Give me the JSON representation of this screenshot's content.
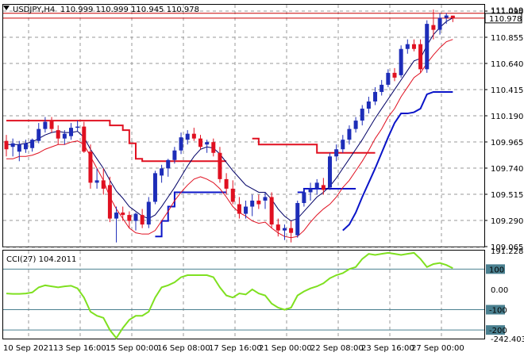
{
  "header": {
    "symbol": "USDJPY,H4",
    "ohlc": "110.999 110.999 110.945 110.978",
    "triangle_icon": "triangle-down-icon"
  },
  "price_panel": {
    "current_price_label": "110.978",
    "high_label": "111.019",
    "y_ticks": [
      "111.090",
      "110.855",
      "110.640",
      "110.415",
      "110.190",
      "109.965",
      "109.740",
      "109.515",
      "109.290",
      "109.065"
    ]
  },
  "cci_panel": {
    "label": "CCI(27) 104.2011",
    "y_ticks": [
      "191.2285",
      "100",
      "0.00",
      "-100",
      "-200",
      "-242.4031"
    ],
    "levels": [
      100,
      -100,
      -200
    ]
  },
  "x_axis": {
    "ticks": [
      "10 Sep 2021",
      "13 Sep 16:00",
      "15 Sep 00:00",
      "16 Sep 08:00",
      "17 Sep 16:00",
      "21 Sep 00:00",
      "22 Sep 08:00",
      "23 Sep 16:00",
      "27 Sep 00:00"
    ]
  },
  "colors": {
    "bull": "#1d2db8",
    "bear": "#e01020",
    "red_band": "#e01020",
    "blue_band": "#0a14c8",
    "navy_line": "#000066",
    "cci_line": "#7fe020",
    "level_line": "#4a8090",
    "price_line": "#cc0000"
  },
  "chart_data": {
    "type": "candlestick",
    "title": "USDJPY,H4",
    "ylim": [
      109.065,
      111.09
    ],
    "candles": [
      {
        "o": 109.95,
        "h": 110.0,
        "l": 109.82,
        "c": 109.88
      },
      {
        "o": 109.9,
        "h": 109.97,
        "l": 109.82,
        "c": 109.93
      },
      {
        "o": 109.86,
        "h": 109.95,
        "l": 109.78,
        "c": 109.92
      },
      {
        "o": 109.88,
        "h": 109.96,
        "l": 109.85,
        "c": 109.93
      },
      {
        "o": 109.89,
        "h": 109.97,
        "l": 109.86,
        "c": 109.96
      },
      {
        "o": 109.95,
        "h": 110.1,
        "l": 109.93,
        "c": 110.05
      },
      {
        "o": 110.05,
        "h": 110.15,
        "l": 110.02,
        "c": 110.11
      },
      {
        "o": 110.12,
        "h": 110.15,
        "l": 110.02,
        "c": 110.05
      },
      {
        "o": 110.04,
        "h": 110.08,
        "l": 109.92,
        "c": 109.97
      },
      {
        "o": 109.97,
        "h": 110.04,
        "l": 109.92,
        "c": 110.01
      },
      {
        "o": 109.99,
        "h": 110.1,
        "l": 109.96,
        "c": 110.06
      },
      {
        "o": 110.06,
        "h": 110.12,
        "l": 110.03,
        "c": 110.07
      },
      {
        "o": 110.07,
        "h": 110.11,
        "l": 109.85,
        "c": 109.86
      },
      {
        "o": 109.86,
        "h": 109.92,
        "l": 109.55,
        "c": 109.6
      },
      {
        "o": 109.6,
        "h": 109.72,
        "l": 109.55,
        "c": 109.62
      },
      {
        "o": 109.62,
        "h": 109.72,
        "l": 109.5,
        "c": 109.55
      },
      {
        "o": 109.58,
        "h": 109.65,
        "l": 109.27,
        "c": 109.3
      },
      {
        "o": 109.3,
        "h": 109.4,
        "l": 109.1,
        "c": 109.35
      },
      {
        "o": 109.35,
        "h": 109.4,
        "l": 109.28,
        "c": 109.33
      },
      {
        "o": 109.33,
        "h": 109.36,
        "l": 109.22,
        "c": 109.28
      },
      {
        "o": 109.28,
        "h": 109.35,
        "l": 109.2,
        "c": 109.34
      },
      {
        "o": 109.33,
        "h": 109.38,
        "l": 109.22,
        "c": 109.25
      },
      {
        "o": 109.25,
        "h": 109.48,
        "l": 109.22,
        "c": 109.44
      },
      {
        "o": 109.44,
        "h": 109.7,
        "l": 109.42,
        "c": 109.68
      },
      {
        "o": 109.66,
        "h": 109.75,
        "l": 109.6,
        "c": 109.72
      },
      {
        "o": 109.72,
        "h": 109.8,
        "l": 109.65,
        "c": 109.79
      },
      {
        "o": 109.79,
        "h": 109.9,
        "l": 109.76,
        "c": 109.87
      },
      {
        "o": 109.87,
        "h": 110.02,
        "l": 109.84,
        "c": 109.98
      },
      {
        "o": 109.96,
        "h": 110.04,
        "l": 109.92,
        "c": 110.01
      },
      {
        "o": 110.01,
        "h": 110.06,
        "l": 109.95,
        "c": 109.97
      },
      {
        "o": 109.97,
        "h": 110.0,
        "l": 109.88,
        "c": 109.9
      },
      {
        "o": 109.92,
        "h": 109.96,
        "l": 109.85,
        "c": 109.94
      },
      {
        "o": 109.94,
        "h": 109.97,
        "l": 109.82,
        "c": 109.85
      },
      {
        "o": 109.85,
        "h": 109.9,
        "l": 109.6,
        "c": 109.63
      },
      {
        "o": 109.63,
        "h": 109.68,
        "l": 109.5,
        "c": 109.55
      },
      {
        "o": 109.55,
        "h": 109.62,
        "l": 109.42,
        "c": 109.44
      },
      {
        "o": 109.42,
        "h": 109.48,
        "l": 109.3,
        "c": 109.34
      },
      {
        "o": 109.34,
        "h": 109.45,
        "l": 109.3,
        "c": 109.4
      },
      {
        "o": 109.4,
        "h": 109.5,
        "l": 109.32,
        "c": 109.45
      },
      {
        "o": 109.45,
        "h": 109.5,
        "l": 109.38,
        "c": 109.42
      },
      {
        "o": 109.45,
        "h": 109.52,
        "l": 109.38,
        "c": 109.48
      },
      {
        "o": 109.48,
        "h": 109.52,
        "l": 109.22,
        "c": 109.25
      },
      {
        "o": 109.25,
        "h": 109.3,
        "l": 109.15,
        "c": 109.2
      },
      {
        "o": 109.2,
        "h": 109.25,
        "l": 109.12,
        "c": 109.22
      },
      {
        "o": 109.22,
        "h": 109.28,
        "l": 109.1,
        "c": 109.18
      },
      {
        "o": 109.16,
        "h": 109.45,
        "l": 109.14,
        "c": 109.43
      },
      {
        "o": 109.43,
        "h": 109.55,
        "l": 109.4,
        "c": 109.52
      },
      {
        "o": 109.52,
        "h": 109.6,
        "l": 109.45,
        "c": 109.55
      },
      {
        "o": 109.55,
        "h": 109.63,
        "l": 109.5,
        "c": 109.6
      },
      {
        "o": 109.58,
        "h": 109.64,
        "l": 109.5,
        "c": 109.54
      },
      {
        "o": 109.56,
        "h": 109.85,
        "l": 109.54,
        "c": 109.82
      },
      {
        "o": 109.82,
        "h": 109.92,
        "l": 109.78,
        "c": 109.88
      },
      {
        "o": 109.88,
        "h": 110.0,
        "l": 109.85,
        "c": 109.96
      },
      {
        "o": 109.96,
        "h": 110.08,
        "l": 109.92,
        "c": 110.05
      },
      {
        "o": 110.05,
        "h": 110.15,
        "l": 110.02,
        "c": 110.12
      },
      {
        "o": 110.12,
        "h": 110.25,
        "l": 110.08,
        "c": 110.22
      },
      {
        "o": 110.22,
        "h": 110.32,
        "l": 110.18,
        "c": 110.28
      },
      {
        "o": 110.28,
        "h": 110.4,
        "l": 110.25,
        "c": 110.36
      },
      {
        "o": 110.36,
        "h": 110.46,
        "l": 110.33,
        "c": 110.42
      },
      {
        "o": 110.42,
        "h": 110.55,
        "l": 110.4,
        "c": 110.52
      },
      {
        "o": 110.52,
        "h": 110.56,
        "l": 110.45,
        "c": 110.48
      },
      {
        "o": 110.5,
        "h": 110.75,
        "l": 110.48,
        "c": 110.72
      },
      {
        "o": 110.72,
        "h": 110.8,
        "l": 110.68,
        "c": 110.76
      },
      {
        "o": 110.76,
        "h": 110.8,
        "l": 110.7,
        "c": 110.72
      },
      {
        "o": 110.76,
        "h": 110.8,
        "l": 110.52,
        "c": 110.55
      },
      {
        "o": 110.55,
        "h": 110.96,
        "l": 110.52,
        "c": 110.93
      },
      {
        "o": 110.92,
        "h": 111.05,
        "l": 110.8,
        "c": 110.88
      },
      {
        "o": 110.88,
        "h": 111.02,
        "l": 110.84,
        "c": 110.98
      },
      {
        "o": 110.98,
        "h": 111.02,
        "l": 110.93,
        "c": 111.0
      },
      {
        "o": 110.999,
        "h": 110.999,
        "l": 110.945,
        "c": 110.978
      }
    ],
    "red_upper_band": [
      110.12,
      110.12,
      110.12,
      110.12,
      110.12,
      110.12,
      110.12,
      110.12,
      110.12,
      110.12,
      110.12,
      110.12,
      110.12,
      110.12,
      110.12,
      110.12,
      110.08,
      110.08,
      110.04,
      109.93,
      109.8,
      109.78,
      109.78,
      109.78,
      109.78,
      109.78,
      109.78,
      109.78,
      109.78,
      109.78,
      109.78,
      109.78,
      109.78,
      109.78,
      109.78,
      null,
      null,
      null,
      null,
      null,
      null,
      null,
      null,
      null,
      null,
      null,
      null,
      null,
      null,
      null,
      null,
      null,
      null,
      null,
      null,
      null,
      null,
      null,
      null,
      null,
      null,
      null,
      null,
      null,
      null,
      null,
      null,
      null,
      null,
      null
    ],
    "red_upper_band_2": [
      null,
      null,
      null,
      null,
      null,
      null,
      null,
      null,
      null,
      null,
      null,
      null,
      null,
      null,
      null,
      null,
      null,
      null,
      null,
      null,
      null,
      null,
      null,
      null,
      null,
      null,
      null,
      null,
      null,
      null,
      null,
      null,
      null,
      null,
      null,
      null,
      null,
      null,
      109.97,
      109.92,
      109.92,
      109.92,
      109.92,
      109.92,
      109.92,
      109.92,
      109.92,
      109.92,
      109.85,
      109.85,
      109.85,
      109.85,
      109.85,
      109.85,
      109.85,
      109.85,
      109.85,
      109.85,
      null,
      null,
      null,
      null,
      null,
      null,
      null,
      null,
      null,
      null,
      null,
      null
    ],
    "red_lower_band": [
      109.8,
      109.8,
      109.82,
      109.82,
      109.83,
      109.85,
      109.88,
      109.9,
      109.92,
      109.92,
      109.94,
      109.95,
      109.92,
      109.82,
      109.72,
      109.62,
      109.48,
      109.38,
      109.3,
      109.22,
      109.18,
      109.17,
      109.17,
      109.2,
      109.28,
      109.36,
      109.45,
      109.52,
      109.58,
      109.63,
      109.65,
      109.63,
      109.6,
      109.55,
      109.48,
      109.4,
      109.35,
      109.32,
      109.28,
      109.26,
      109.27,
      109.22,
      109.18,
      109.15,
      109.14,
      109.15,
      109.2,
      109.27,
      109.33,
      109.38,
      109.42,
      109.48,
      109.56,
      109.62,
      109.7,
      109.78,
      109.87,
      109.97,
      110.05,
      110.15,
      110.22,
      110.32,
      110.4,
      110.48,
      110.52,
      110.6,
      110.67,
      110.73,
      110.78,
      110.8
    ],
    "navy_line": [
      109.92,
      109.92,
      109.92,
      109.93,
      109.94,
      109.97,
      110.0,
      110.02,
      110.03,
      110.02,
      110.02,
      110.03,
      109.98,
      109.88,
      109.8,
      109.72,
      109.62,
      109.53,
      109.47,
      109.4,
      109.36,
      109.32,
      109.3,
      109.33,
      109.4,
      109.48,
      109.56,
      109.65,
      109.74,
      109.82,
      109.88,
      109.9,
      109.89,
      109.84,
      109.77,
      109.7,
      109.64,
      109.58,
      109.55,
      109.52,
      109.52,
      109.46,
      109.38,
      109.32,
      109.28,
      109.3,
      109.36,
      109.42,
      109.48,
      109.52,
      109.57,
      109.64,
      109.72,
      109.8,
      109.88,
      109.96,
      110.05,
      110.14,
      110.22,
      110.3,
      110.38,
      110.46,
      110.54,
      110.62,
      110.64,
      110.75,
      110.84,
      110.9,
      110.95,
      110.98
    ],
    "blue_lower_band": [
      null,
      null,
      null,
      null,
      null,
      null,
      null,
      null,
      null,
      null,
      null,
      null,
      null,
      null,
      null,
      null,
      null,
      null,
      null,
      null,
      null,
      null,
      null,
      109.15,
      109.28,
      109.4,
      109.52,
      109.52,
      109.52,
      109.52,
      109.52,
      109.52,
      109.52,
      109.52,
      109.52,
      null,
      null,
      null,
      null,
      null,
      null,
      null,
      null,
      null,
      null,
      109.52,
      109.55,
      109.55,
      109.55,
      109.55,
      109.55,
      109.55,
      109.55,
      109.55,
      109.55,
      null,
      null,
      null,
      null,
      null,
      null,
      null,
      null,
      null,
      null,
      null,
      null,
      null,
      null,
      null
    ],
    "blue_lower_band_2": [
      null,
      null,
      null,
      null,
      null,
      null,
      null,
      null,
      null,
      null,
      null,
      null,
      null,
      null,
      null,
      null,
      null,
      null,
      null,
      null,
      null,
      null,
      null,
      null,
      null,
      null,
      null,
      null,
      null,
      null,
      null,
      null,
      null,
      null,
      null,
      null,
      null,
      null,
      null,
      null,
      null,
      null,
      null,
      null,
      null,
      null,
      null,
      null,
      null,
      null,
      null,
      null,
      109.2,
      109.25,
      109.35,
      109.48,
      109.6,
      109.72,
      109.85,
      109.98,
      110.1,
      110.18,
      110.18,
      110.19,
      110.22,
      110.34,
      110.36,
      110.36,
      110.36,
      110.36
    ],
    "cci": [
      -20,
      -22,
      -22,
      -20,
      -15,
      10,
      20,
      15,
      10,
      15,
      18,
      5,
      -40,
      -110,
      -130,
      -140,
      -200,
      -240,
      -190,
      -150,
      -130,
      -130,
      -110,
      -40,
      10,
      20,
      35,
      60,
      70,
      70,
      70,
      70,
      60,
      10,
      -30,
      -40,
      -20,
      -25,
      0,
      -20,
      -30,
      -70,
      -90,
      -100,
      -90,
      -30,
      -10,
      5,
      15,
      30,
      55,
      70,
      80,
      100,
      110,
      150,
      175,
      170,
      175,
      180,
      175,
      170,
      175,
      180,
      150,
      110,
      125,
      130,
      120,
      104.2011
    ],
    "cci_ylim": [
      -242.4031,
      191.2285
    ]
  }
}
